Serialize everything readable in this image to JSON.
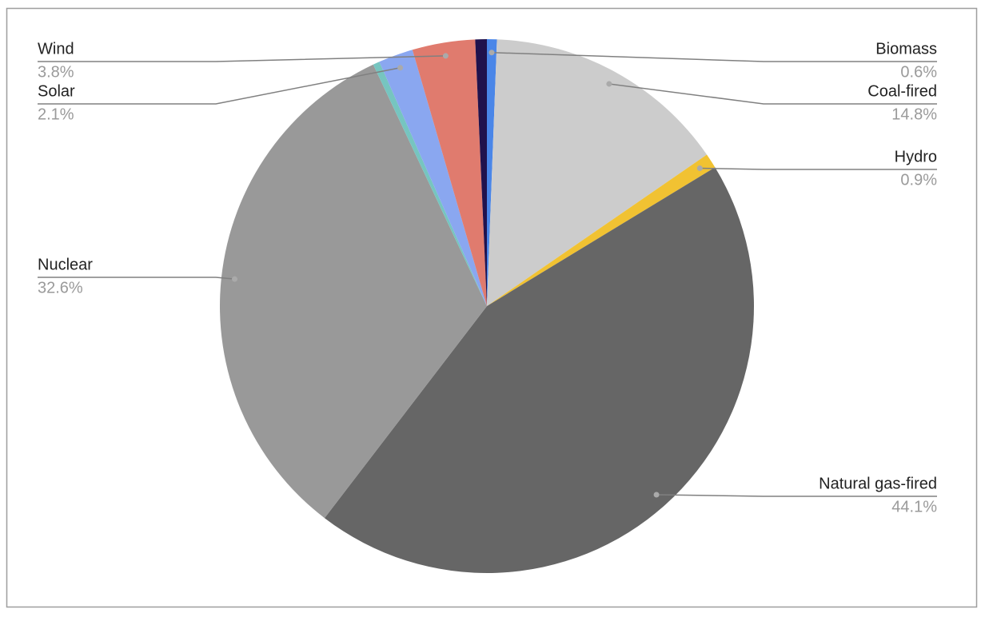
{
  "chart_data": {
    "type": "pie",
    "categories": [
      "Biomass",
      "Coal-fired",
      "Hydro",
      "Natural gas-fired",
      "Nuclear",
      null,
      "Solar",
      "Wind",
      null
    ],
    "values": [
      0.6,
      14.8,
      0.9,
      44.1,
      32.6,
      0.4,
      2.1,
      3.8,
      0.7
    ],
    "value_labels": [
      "0.6%",
      "14.8%",
      "0.9%",
      "44.1%",
      "32.6%",
      null,
      "2.1%",
      "3.8%",
      null
    ],
    "colors": [
      "#4a86e8",
      "#cccccc",
      "#f1c232",
      "#666666",
      "#999999",
      "#76c5c0",
      "#8aa7f0",
      "#e07b6e",
      "#20124d"
    ]
  }
}
